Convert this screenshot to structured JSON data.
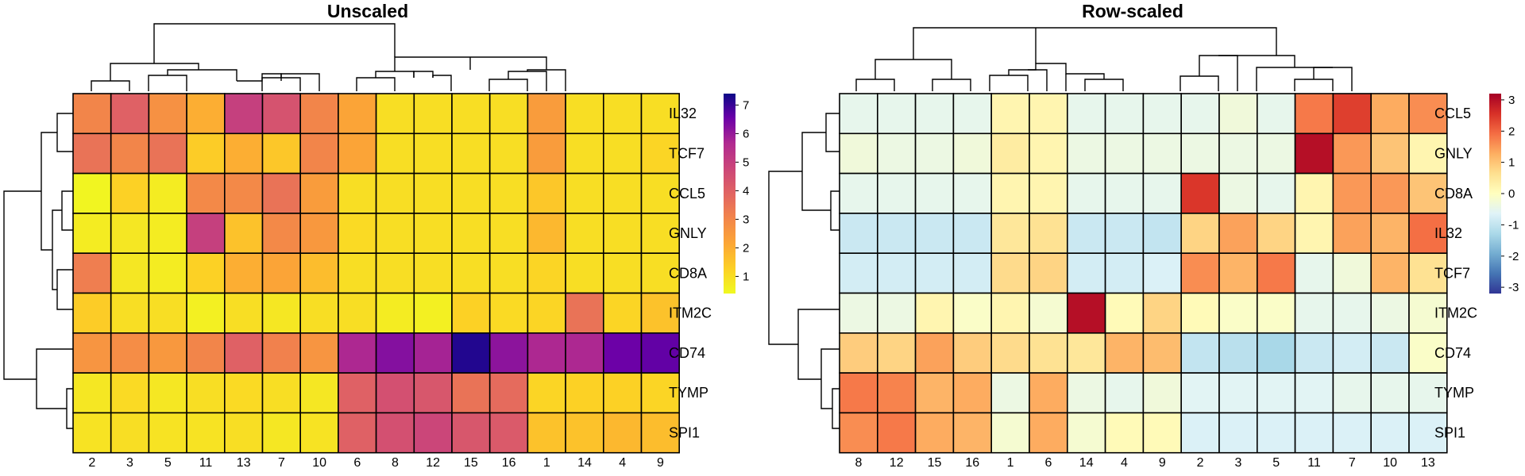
{
  "chart_data": [
    {
      "type": "heatmap",
      "title": "Unscaled",
      "row_order": [
        "IL32",
        "TCF7",
        "CCL5",
        "GNLY",
        "CD8A",
        "ITM2C",
        "CD74",
        "TYMP",
        "SPI1"
      ],
      "col_order": [
        "2",
        "3",
        "5",
        "11",
        "13",
        "7",
        "10",
        "6",
        "8",
        "12",
        "15",
        "16",
        "1",
        "14",
        "4",
        "9"
      ],
      "values": [
        [
          3.0,
          4.0,
          2.7,
          2.0,
          5.0,
          4.4,
          3.0,
          2.2,
          1.0,
          1.0,
          1.0,
          1.0,
          2.4,
          1.0,
          1.0,
          1.0
        ],
        [
          3.5,
          3.0,
          3.5,
          1.4,
          2.0,
          1.5,
          3.0,
          2.2,
          1.0,
          1.0,
          1.0,
          1.0,
          2.4,
          1.0,
          1.0,
          1.2
        ],
        [
          0.5,
          1.3,
          0.7,
          2.9,
          2.9,
          3.5,
          2.4,
          1.0,
          1.0,
          1.0,
          1.0,
          1.0,
          1.5,
          1.0,
          1.0,
          1.0
        ],
        [
          0.7,
          0.8,
          0.7,
          5.0,
          1.6,
          2.9,
          2.5,
          1.1,
          1.0,
          1.0,
          1.0,
          1.0,
          1.8,
          1.0,
          1.0,
          1.0
        ],
        [
          3.2,
          0.8,
          0.7,
          1.3,
          2.0,
          2.2,
          1.7,
          1.0,
          1.0,
          1.0,
          1.0,
          1.0,
          1.2,
          1.0,
          1.0,
          1.0
        ],
        [
          1.4,
          1.0,
          1.0,
          0.6,
          1.0,
          0.8,
          1.0,
          1.0,
          0.7,
          0.6,
          1.3,
          1.1,
          1.2,
          3.5,
          1.2,
          1.6
        ],
        [
          2.6,
          2.8,
          2.5,
          3.0,
          4.0,
          3.1,
          2.6,
          5.7,
          6.2,
          5.8,
          7.2,
          6.1,
          5.7,
          5.7,
          6.5,
          6.6
        ],
        [
          0.8,
          1.1,
          0.8,
          1.0,
          1.1,
          1.0,
          0.8,
          4.0,
          4.5,
          4.3,
          3.5,
          3.7,
          1.2,
          1.3,
          1.3,
          1.2
        ],
        [
          0.9,
          1.0,
          0.9,
          0.9,
          1.0,
          0.8,
          0.9,
          4.0,
          4.5,
          4.8,
          4.3,
          4.2,
          1.6,
          1.6,
          1.8,
          1.7
        ]
      ],
      "colorbar": {
        "ticks": [
          1,
          2,
          3,
          4,
          5,
          6,
          7
        ],
        "range": [
          0.4,
          7.4
        ],
        "palette": "plasma"
      }
    },
    {
      "type": "heatmap",
      "title": "Row-scaled",
      "row_order": [
        "CCL5",
        "GNLY",
        "CD8A",
        "IL32",
        "TCF7",
        "ITM2C",
        "CD74",
        "TYMP",
        "SPI1"
      ],
      "col_order": [
        "8",
        "12",
        "15",
        "16",
        "1",
        "6",
        "14",
        "4",
        "9",
        "2",
        "3",
        "5",
        "11",
        "7",
        "10",
        "13"
      ],
      "values": [
        [
          -0.5,
          -0.5,
          -0.5,
          -0.5,
          0.2,
          0.2,
          -0.5,
          -0.5,
          -0.5,
          -0.5,
          -0.3,
          -0.5,
          1.8,
          2.4,
          1.3,
          1.6
        ],
        [
          -0.3,
          -0.4,
          -0.4,
          -0.3,
          0.4,
          0.2,
          -0.4,
          -0.4,
          -0.4,
          -0.4,
          -0.4,
          -0.4,
          3.0,
          1.5,
          1.0,
          0.2
        ],
        [
          -0.5,
          -0.5,
          -0.5,
          -0.5,
          0.2,
          0.2,
          -0.5,
          -0.5,
          -0.5,
          2.5,
          -0.4,
          -0.5,
          0.2,
          1.5,
          1.5,
          1.0
        ],
        [
          -0.9,
          -0.9,
          -0.9,
          -0.9,
          0.5,
          0.6,
          -0.9,
          -0.9,
          -1.0,
          0.8,
          1.4,
          0.8,
          0.2,
          1.4,
          1.2,
          1.9
        ],
        [
          -0.8,
          -0.8,
          -0.8,
          -0.8,
          0.7,
          0.8,
          -0.8,
          -0.8,
          -0.7,
          1.6,
          1.2,
          1.8,
          -0.5,
          -0.3,
          1.2,
          0.6
        ],
        [
          -0.4,
          -0.4,
          0.2,
          -0.1,
          0.2,
          -0.2,
          3.0,
          0.1,
          0.8,
          0.1,
          -0.1,
          -0.1,
          -0.5,
          -0.5,
          -0.4,
          -0.2
        ],
        [
          0.9,
          0.8,
          1.4,
          0.9,
          0.7,
          0.6,
          0.5,
          1.2,
          1.1,
          -1.0,
          -1.1,
          -1.3,
          -0.9,
          -0.8,
          -0.9,
          -0.1
        ],
        [
          1.8,
          1.7,
          1.2,
          1.3,
          -0.4,
          1.3,
          -0.4,
          -0.5,
          -0.3,
          -0.6,
          -0.6,
          -0.6,
          -0.6,
          -0.5,
          -0.5,
          -0.5
        ],
        [
          1.6,
          1.8,
          1.3,
          1.2,
          -0.2,
          1.3,
          -0.2,
          0.1,
          0.1,
          -0.7,
          -0.7,
          -0.7,
          -0.7,
          -0.7,
          -0.7,
          -0.7
        ]
      ],
      "colorbar": {
        "ticks": [
          -3,
          -2,
          -1,
          0,
          1,
          2,
          3
        ],
        "range": [
          -3.2,
          3.2
        ],
        "palette": "RdYlBu_r"
      }
    }
  ]
}
